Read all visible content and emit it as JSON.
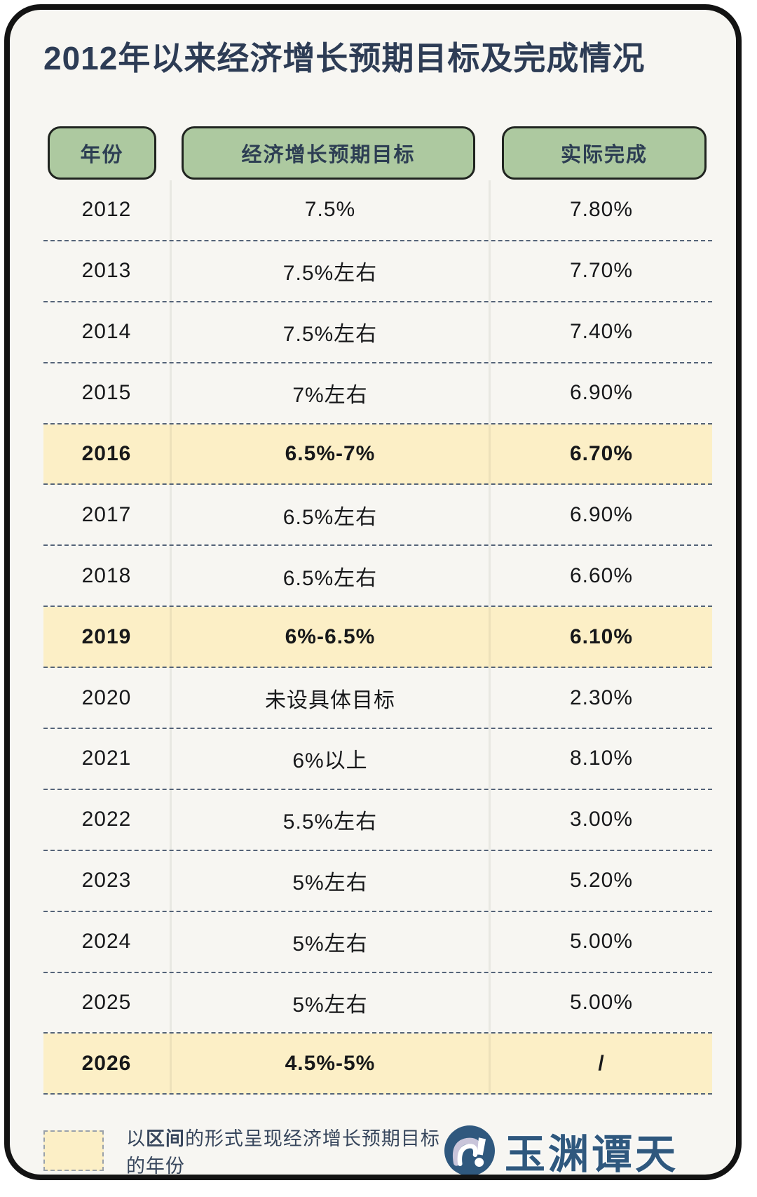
{
  "title": "2012年以来经济增长预期目标及完成情况",
  "table": {
    "headers": [
      "年份",
      "经济增长预期目标",
      "实际完成"
    ],
    "rows": [
      {
        "year": "2012",
        "target": "7.5%",
        "actual": "7.80%",
        "highlight": false
      },
      {
        "year": "2013",
        "target": "7.5%左右",
        "actual": "7.70%",
        "highlight": false
      },
      {
        "year": "2014",
        "target": "7.5%左右",
        "actual": "7.40%",
        "highlight": false
      },
      {
        "year": "2015",
        "target": "7%左右",
        "actual": "6.90%",
        "highlight": false
      },
      {
        "year": "2016",
        "target": "6.5%-7%",
        "actual": "6.70%",
        "highlight": true
      },
      {
        "year": "2017",
        "target": "6.5%左右",
        "actual": "6.90%",
        "highlight": false
      },
      {
        "year": "2018",
        "target": "6.5%左右",
        "actual": "6.60%",
        "highlight": false
      },
      {
        "year": "2019",
        "target": "6%-6.5%",
        "actual": "6.10%",
        "highlight": true
      },
      {
        "year": "2020",
        "target": "未设具体目标",
        "actual": "2.30%",
        "highlight": false
      },
      {
        "year": "2021",
        "target": "6%以上",
        "actual": "8.10%",
        "highlight": false
      },
      {
        "year": "2022",
        "target": "5.5%左右",
        "actual": "3.00%",
        "highlight": false
      },
      {
        "year": "2023",
        "target": "5%左右",
        "actual": "5.20%",
        "highlight": false
      },
      {
        "year": "2024",
        "target": "5%左右",
        "actual": "5.00%",
        "highlight": false
      },
      {
        "year": "2025",
        "target": "5%左右",
        "actual": "5.00%",
        "highlight": false
      },
      {
        "year": "2026",
        "target": "4.5%-5%",
        "actual": "/",
        "highlight": true
      }
    ]
  },
  "legend": {
    "prefix": "以",
    "bold": "区间",
    "suffix": "的形式呈现经济增长预期目标的年份"
  },
  "logo": {
    "text": "玉渊谭天"
  },
  "colors": {
    "card_background": "#f7f6f2",
    "card_border": "#131313",
    "header_green": "#adc9a0",
    "highlight_yellow": "#fcefc6",
    "title_navy": "#2d3c55",
    "dash_slate": "#546378",
    "logo_blue": "#2f587e"
  },
  "chart_data": {
    "type": "table",
    "title": "2012年以来经济增长预期目标及完成情况",
    "columns": [
      "年份",
      "经济增长预期目标",
      "实际完成"
    ],
    "rows": [
      [
        "2012",
        "7.5%",
        "7.80%"
      ],
      [
        "2013",
        "7.5%左右",
        "7.70%"
      ],
      [
        "2014",
        "7.5%左右",
        "7.40%"
      ],
      [
        "2015",
        "7%左右",
        "6.90%"
      ],
      [
        "2016",
        "6.5%-7%",
        "6.70%"
      ],
      [
        "2017",
        "6.5%左右",
        "6.90%"
      ],
      [
        "2018",
        "6.5%左右",
        "6.60%"
      ],
      [
        "2019",
        "6%-6.5%",
        "6.10%"
      ],
      [
        "2020",
        "未设具体目标",
        "2.30%"
      ],
      [
        "2021",
        "6%以上",
        "8.10%"
      ],
      [
        "2022",
        "5.5%左右",
        "3.00%"
      ],
      [
        "2023",
        "5%左右",
        "5.20%"
      ],
      [
        "2024",
        "5%左右",
        "5.00%"
      ],
      [
        "2025",
        "5%左右",
        "5.00%"
      ],
      [
        "2026",
        "4.5%-5%",
        null
      ]
    ],
    "highlighted_years": [
      "2016",
      "2019",
      "2026"
    ],
    "highlight_meaning": "以区间的形式呈现经济增长预期目标的年份",
    "actual_completion_values_percent": [
      7.8,
      7.7,
      7.4,
      6.9,
      6.7,
      6.9,
      6.6,
      6.1,
      2.3,
      8.1,
      3.0,
      5.2,
      5.0,
      5.0,
      null
    ]
  }
}
